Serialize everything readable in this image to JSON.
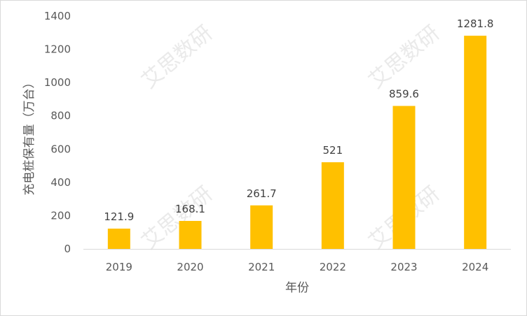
{
  "chart_data": {
    "type": "bar",
    "title": "",
    "xlabel": "年份",
    "ylabel": "充电桩保有量（万台）",
    "categories": [
      "2019",
      "2020",
      "2021",
      "2022",
      "2023",
      "2024"
    ],
    "values": [
      121.9,
      168.1,
      261.7,
      521,
      859.6,
      1281.8
    ],
    "value_labels": [
      "121.9",
      "168.1",
      "261.7",
      "521",
      "859.6",
      "1281.8"
    ],
    "ylim": [
      0,
      1400
    ],
    "yticks": [
      0,
      200,
      400,
      600,
      800,
      1000,
      1200,
      1400
    ],
    "grid": false,
    "legend": "none",
    "bar_color": "#FFC000"
  },
  "watermark": {
    "text": "艾思数研"
  }
}
